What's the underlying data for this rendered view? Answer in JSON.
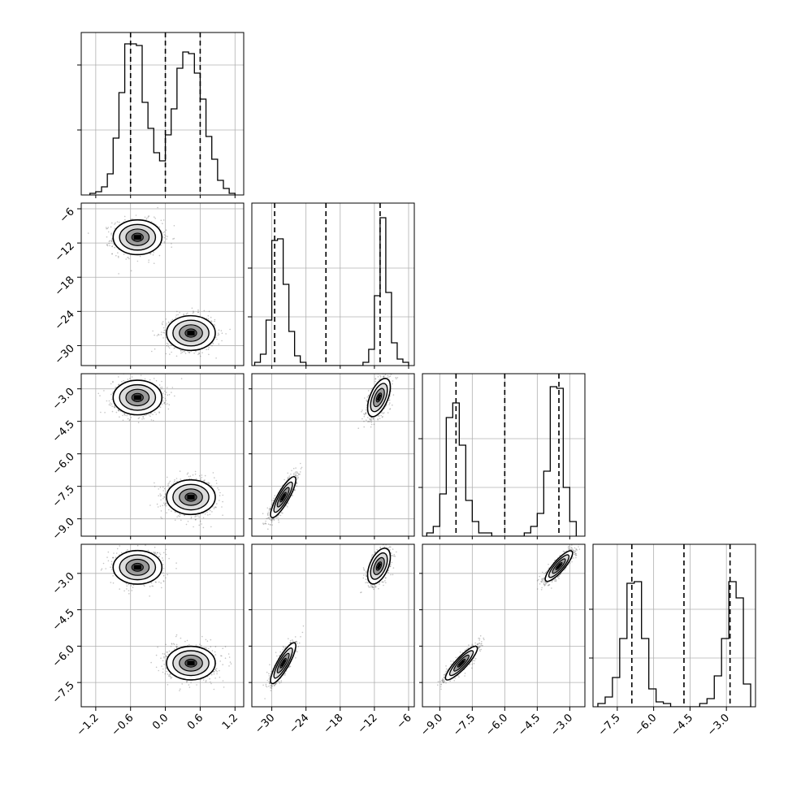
{
  "chart_data": {
    "type": "corner",
    "num_params": 4,
    "colors": {
      "line": "#000000",
      "grid": "#b0b0b0",
      "density_light": "#dcdcdc",
      "density_mid": "#9a9a9a",
      "density_dark": "#505050"
    },
    "params": [
      {
        "range": [
          -1.45,
          1.35
        ],
        "ticks": [
          -1.2,
          -0.6,
          0.0,
          0.6,
          1.2
        ],
        "tick_labels": [
          "−1.2",
          "−0.6",
          "0.0",
          "0.6",
          "1.2"
        ],
        "modes": [
          -0.45,
          0.45
        ],
        "quantiles": [
          -0.6,
          0.0,
          0.6
        ]
      },
      {
        "range": [
          -33.5,
          -5.0
        ],
        "ticks": [
          -30,
          -24,
          -18,
          -12,
          -6
        ],
        "tick_labels": [
          "−30",
          "−24",
          "−18",
          "−12",
          "−6"
        ],
        "modes": [
          -28.0,
          -11.2
        ],
        "quantiles": [
          -29.5,
          -20.5,
          -11.0
        ]
      },
      {
        "range": [
          -9.8,
          -2.3
        ],
        "ticks": [
          -9.0,
          -7.5,
          -6.0,
          -4.5,
          -3.0
        ],
        "tick_labels": [
          "−9.0",
          "−7.5",
          "−6.0",
          "−4.5",
          "−3.0"
        ],
        "modes": [
          -8.0,
          -3.4
        ],
        "quantiles": [
          -8.25,
          -6.0,
          -3.5
        ]
      },
      {
        "range": [
          -8.5,
          -1.8
        ],
        "ticks": [
          -7.5,
          -6.0,
          -4.5,
          -3.0
        ],
        "tick_labels": [
          "−7.5",
          "−6.0",
          "−4.5",
          "−3.0"
        ],
        "modes": [
          -6.6,
          -2.7
        ],
        "quantiles": [
          -6.9,
          -4.75,
          -2.85
        ]
      }
    ],
    "histograms": [
      {
        "param": 0,
        "ymax": 1.0,
        "yticks": [
          0.4,
          0.8
        ],
        "bin_edges": [
          -1.3,
          -1.2,
          -1.1,
          -1.0,
          -0.9,
          -0.8,
          -0.7,
          -0.6,
          -0.5,
          -0.4,
          -0.3,
          -0.2,
          -0.1,
          0.0,
          0.1,
          0.2,
          0.3,
          0.4,
          0.5,
          0.6,
          0.7,
          0.8,
          0.9,
          1.0,
          1.1,
          1.2
        ],
        "counts": [
          0.01,
          0.02,
          0.05,
          0.13,
          0.35,
          0.63,
          0.93,
          0.93,
          0.92,
          0.57,
          0.41,
          0.26,
          0.21,
          0.37,
          0.53,
          0.78,
          0.88,
          0.87,
          0.75,
          0.59,
          0.36,
          0.22,
          0.09,
          0.04,
          0.01
        ]
      },
      {
        "param": 1,
        "ymax": 1.0,
        "yticks": [
          0.3,
          0.6
        ],
        "bin_edges": [
          -33,
          -32,
          -31,
          -30,
          -29,
          -28,
          -27,
          -26,
          -25,
          -24,
          -23,
          -22,
          -21,
          -20,
          -19,
          -18,
          -17,
          -16,
          -15,
          -14,
          -13,
          -12,
          -11,
          -10,
          -9,
          -8,
          -7,
          -6
        ],
        "counts": [
          0.02,
          0.07,
          0.28,
          0.77,
          0.78,
          0.5,
          0.21,
          0.06,
          0.02,
          0.0,
          0.0,
          0.0,
          0.0,
          0.0,
          0.0,
          0.0,
          0.0,
          0.0,
          0.0,
          0.02,
          0.1,
          0.43,
          0.91,
          0.45,
          0.14,
          0.04,
          0.02
        ]
      },
      {
        "param": 2,
        "ymax": 1.0,
        "yticks": [
          0.3,
          0.6
        ],
        "bin_edges": [
          -9.6,
          -9.3,
          -9.0,
          -8.7,
          -8.4,
          -8.1,
          -7.8,
          -7.5,
          -7.2,
          -6.9,
          -6.6,
          -6.3,
          -6.0,
          -5.7,
          -5.4,
          -5.1,
          -4.8,
          -4.5,
          -4.2,
          -3.9,
          -3.6,
          -3.3,
          -3.0,
          -2.7
        ],
        "counts": [
          0.02,
          0.06,
          0.26,
          0.73,
          0.82,
          0.56,
          0.22,
          0.09,
          0.02,
          0.02,
          0.0,
          0.0,
          0.0,
          0.0,
          0.0,
          0.02,
          0.06,
          0.14,
          0.4,
          0.92,
          0.91,
          0.3,
          0.09
        ]
      },
      {
        "param": 3,
        "ymax": 1.0,
        "yticks": [
          0.3,
          0.6
        ],
        "bin_edges": [
          -8.3,
          -8.0,
          -7.7,
          -7.4,
          -7.1,
          -6.8,
          -6.5,
          -6.2,
          -5.9,
          -5.6,
          -5.3,
          -5.0,
          -4.7,
          -4.4,
          -4.1,
          -3.8,
          -3.5,
          -3.2,
          -2.9,
          -2.6,
          -2.3,
          -2.0
        ],
        "counts": [
          0.02,
          0.06,
          0.18,
          0.42,
          0.76,
          0.77,
          0.42,
          0.11,
          0.03,
          0.02,
          0.0,
          0.0,
          0.0,
          0.0,
          0.02,
          0.05,
          0.19,
          0.42,
          0.77,
          0.67,
          0.14
        ]
      }
    ],
    "scatter_panels": [
      {
        "xparam": 0,
        "yparam": 1,
        "clusters": [
          {
            "center": [
              -0.48,
              -11.0
            ],
            "sigma": [
              0.2,
              1.45
            ],
            "rho": 0.0
          },
          {
            "center": [
              0.44,
              -27.8
            ],
            "sigma": [
              0.2,
              1.45
            ],
            "rho": 0.0
          }
        ]
      },
      {
        "xparam": 0,
        "yparam": 2,
        "clusters": [
          {
            "center": [
              -0.48,
              -3.4
            ],
            "sigma": [
              0.2,
              0.38
            ],
            "rho": 0.0
          },
          {
            "center": [
              0.44,
              -8.0
            ],
            "sigma": [
              0.2,
              0.38
            ],
            "rho": 0.0
          }
        ]
      },
      {
        "xparam": 1,
        "yparam": 2,
        "clusters": [
          {
            "center": [
              -11.2,
              -3.4
            ],
            "sigma": [
              0.95,
              0.42
            ],
            "rho": 0.55
          },
          {
            "center": [
              -28.0,
              -8.0
            ],
            "sigma": [
              1.05,
              0.45
            ],
            "rho": 0.85
          }
        ]
      },
      {
        "xparam": 0,
        "yparam": 3,
        "clusters": [
          {
            "center": [
              -0.48,
              -2.75
            ],
            "sigma": [
              0.2,
              0.33
            ],
            "rho": 0.0
          },
          {
            "center": [
              0.44,
              -6.7
            ],
            "sigma": [
              0.2,
              0.33
            ],
            "rho": 0.0
          }
        ]
      },
      {
        "xparam": 1,
        "yparam": 3,
        "clusters": [
          {
            "center": [
              -11.2,
              -2.7
            ],
            "sigma": [
              0.95,
              0.35
            ],
            "rho": 0.5
          },
          {
            "center": [
              -28.0,
              -6.7
            ],
            "sigma": [
              1.05,
              0.4
            ],
            "rho": 0.85
          }
        ]
      },
      {
        "xparam": 2,
        "yparam": 3,
        "clusters": [
          {
            "center": [
              -3.5,
              -2.7
            ],
            "sigma": [
              0.3,
              0.3
            ],
            "rho": 0.85
          },
          {
            "center": [
              -8.0,
              -6.7
            ],
            "sigma": [
              0.35,
              0.33
            ],
            "rho": 0.88
          }
        ]
      }
    ]
  }
}
